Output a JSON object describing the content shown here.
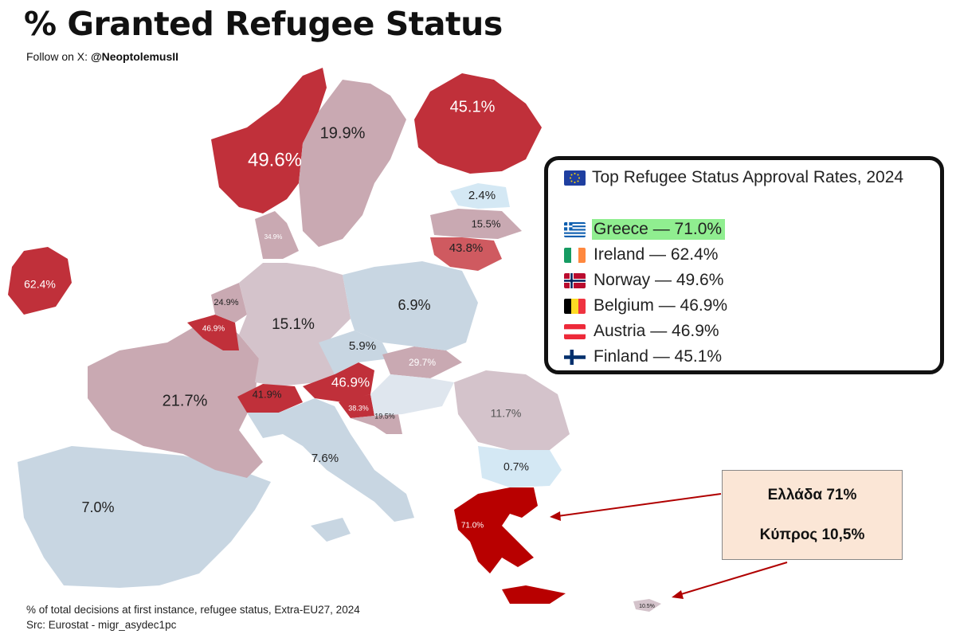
{
  "title": "% Granted Refugee Status",
  "follow": {
    "prefix": "Follow on X: ",
    "handle": "@NeoptolemusII"
  },
  "map_labels": {
    "norway": "49.6%",
    "sweden": "19.9%",
    "finland": "45.1%",
    "estonia": "2.4%",
    "latvia": "15.5%",
    "lithuania": "43.8%",
    "denmark": "34.9%",
    "ireland": "62.4%",
    "netherlands": "24.9%",
    "belgium": "46.9%",
    "germany": "15.1%",
    "poland": "6.9%",
    "czechia": "5.9%",
    "slovakia": "29.7%",
    "austria": "46.9%",
    "switzerland": "41.9%",
    "slovenia": "38.3%",
    "croatia": "19.5%",
    "france": "21.7%",
    "italy": "7.6%",
    "spain": "7.0%",
    "romania": "11.7%",
    "bulgaria": "0.7%",
    "greece": "71.0%",
    "cyprus": "10.5%"
  },
  "ranking": {
    "header": "Top Refugee Status Approval Rates, 2024",
    "header_flag": "eu-flag-icon",
    "items": [
      {
        "flag": "greece-flag-icon",
        "label": "Greece — 71.0%",
        "highlight": true
      },
      {
        "flag": "ireland-flag-icon",
        "label": "Ireland — 62.4%"
      },
      {
        "flag": "norway-flag-icon",
        "label": "Norway — 49.6%"
      },
      {
        "flag": "belgium-flag-icon",
        "label": "Belgium — 46.9%"
      },
      {
        "flag": "austria-flag-icon",
        "label": "Austria — 46.9%"
      },
      {
        "flag": "finland-flag-icon",
        "label": "Finland — 45.1%"
      }
    ]
  },
  "callout": {
    "line1": "Ελλάδα 71%",
    "line2": "Κύπρος 10,5%"
  },
  "footer": {
    "line1": "% of total decisions at first instance, refugee status, Extra-EU27, 2024",
    "line2": "Src: Eurostat - migr_asydec1pc"
  },
  "colors": {
    "dark_red": "#c0303a",
    "mid_red": "#cf5a60",
    "mauve": "#c9a9b2",
    "light_mauve": "#d4c3cb",
    "light_blue": "#c8d6e2",
    "pale_blue": "#d4e8f4",
    "greece_red": "#b80000"
  }
}
